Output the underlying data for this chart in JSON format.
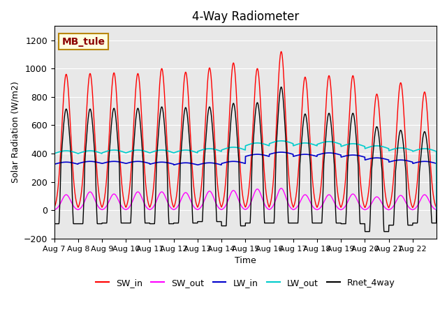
{
  "title": "4-Way Radiometer",
  "xlabel": "Time",
  "ylabel": "Solar Radiation (W/m2)",
  "ylim": [
    -200,
    1300
  ],
  "yticks": [
    -200,
    0,
    200,
    400,
    600,
    800,
    1000,
    1200
  ],
  "xtick_labels": [
    "Aug 7",
    "Aug 8",
    "Aug 9",
    "Aug 10",
    "Aug 11",
    "Aug 12",
    "Aug 13",
    "Aug 14",
    "Aug 15",
    "Aug 16",
    "Aug 17",
    "Aug 18",
    "Aug 19",
    "Aug 20",
    "Aug 21",
    "Aug 22"
  ],
  "station_label": "MB_tule",
  "colors": {
    "SW_in": "#ff0000",
    "SW_out": "#ff00ff",
    "LW_in": "#0000cc",
    "LW_out": "#00cccc",
    "Rnet_4way": "#000000"
  },
  "background_color": "#e8e8e8",
  "n_days": 16,
  "SW_in_peaks": [
    960,
    965,
    970,
    965,
    1000,
    975,
    1005,
    1040,
    1000,
    1120,
    940,
    950,
    950,
    820,
    900,
    835
  ],
  "SW_out_peaks": [
    110,
    130,
    115,
    130,
    130,
    125,
    135,
    140,
    150,
    155,
    110,
    110,
    115,
    95,
    105,
    110
  ],
  "LW_in_base": [
    325,
    330,
    330,
    330,
    325,
    320,
    320,
    330,
    380,
    395,
    380,
    390,
    375,
    355,
    340,
    330
  ],
  "LW_out_base": [
    400,
    400,
    405,
    405,
    405,
    405,
    415,
    425,
    455,
    470,
    455,
    465,
    450,
    435,
    420,
    415
  ],
  "Rnet_peaks": [
    715,
    715,
    720,
    720,
    730,
    725,
    730,
    755,
    760,
    870,
    680,
    685,
    685,
    590,
    565,
    555
  ],
  "Rnet_nights": [
    -95,
    -95,
    -90,
    -90,
    -95,
    -90,
    -80,
    -110,
    -90,
    -90,
    -90,
    -90,
    -95,
    -150,
    -105,
    -90
  ]
}
